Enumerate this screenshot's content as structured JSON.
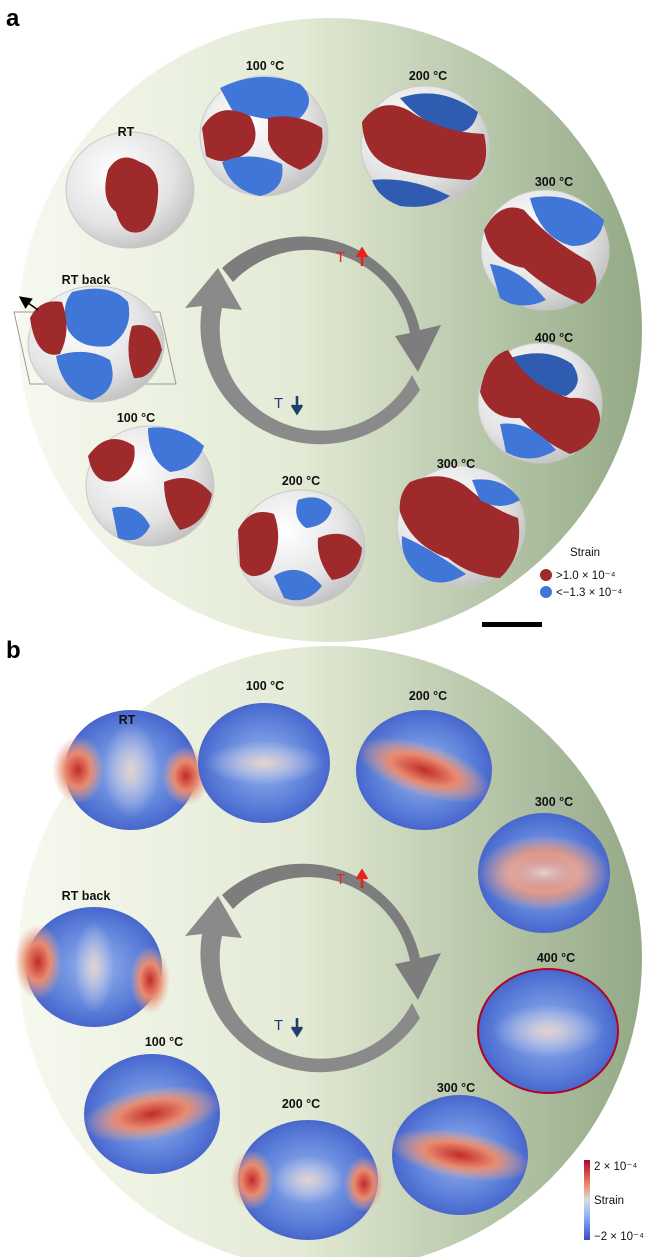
{
  "panel_a": {
    "letter": "a",
    "temperature_labels": {
      "rt": "RT",
      "h100": "100 °C",
      "h200": "200 °C",
      "h300": "300 °C",
      "h400": "400 °C",
      "c300": "300 °C",
      "c200": "200 °C",
      "c100": "100 °C",
      "rtback": "RT back"
    },
    "heating_label": "T",
    "cooling_label": "T",
    "legend": {
      "title": "Strain",
      "high": ">1.0 × 10⁻⁴",
      "low": "<−1.3 × 10⁻⁴",
      "high_color": "#9e2a2b",
      "low_color": "#3f76d8"
    }
  },
  "panel_b": {
    "letter": "b",
    "temperature_labels": {
      "rt": "RT",
      "h100": "100 °C",
      "h200": "200 °C",
      "h300": "300 °C",
      "h400": "400 °C",
      "c300": "300 °C",
      "c200": "200 °C",
      "c100": "100 °C",
      "rtback": "RT back"
    },
    "heating_label": "T",
    "cooling_label": "T",
    "colorbar": {
      "max": "2 × 10⁻⁴",
      "title": "Strain",
      "min": "−2 × 10⁻⁴"
    }
  },
  "colors": {
    "heating": "#e8221c",
    "cooling": "#1f3f6e",
    "cycle_arrow": "#808080"
  }
}
